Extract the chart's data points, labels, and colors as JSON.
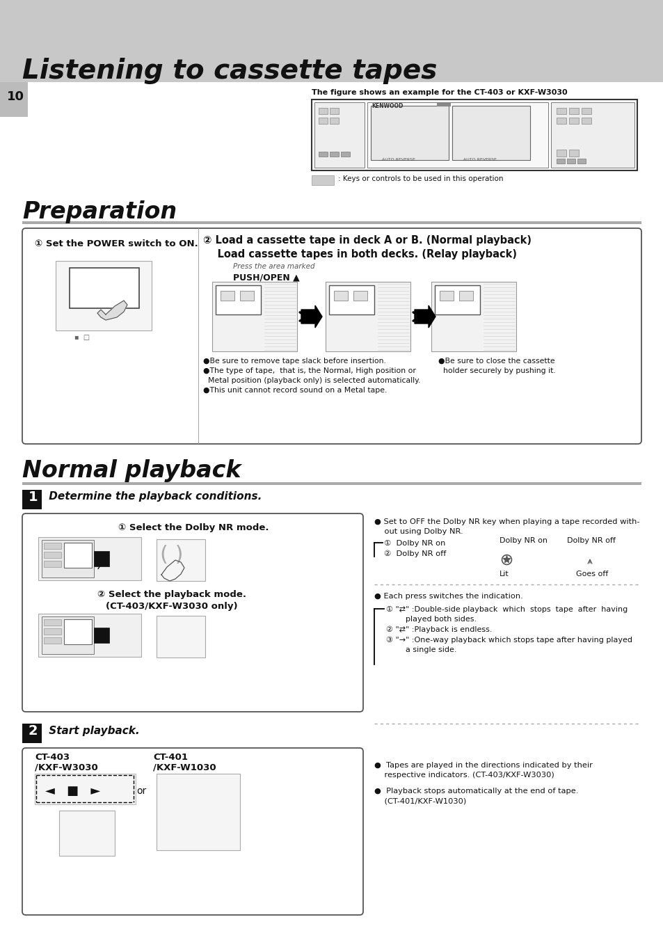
{
  "title": "Listening to cassette tapes",
  "page_number": "10",
  "section1_title": "Preparation",
  "section2_title": "Normal playback",
  "step1_title": " Determine the playback conditions.",
  "step2_title": " Start playback.",
  "bg_color": "#ffffff",
  "header_bg": "#c8c8c8",
  "section_divider": "#aaaaaa",
  "box_border": "#666666",
  "dark_gray": "#888888",
  "light_gray": "#cccccc",
  "black": "#000000",
  "step_box_bg": "#222222",
  "figure_caption": "The figure shows an example for the CT-403 or KXF-W3030",
  "legend_text": ": Keys or controls to be used in this operation",
  "power_text": "① Set the POWER switch to ON.",
  "load_text1": "② Load a cassette tape in deck A or B. (Normal playback)",
  "load_text2": "    Load cassette tapes in both decks. (Relay playback)",
  "push_open_italic": "Press the area marked",
  "push_open_bold": "PUSH/OPEN ▲",
  "bullet1": "●Be sure to remove tape slack before insertion.",
  "bullet2": "●The type of tape,  that is, the Normal, High position or",
  "bullet2b": "  Metal position (playback only) is selected automatically.",
  "bullet3": "●This unit cannot record sound on a Metal tape.",
  "bullet4": "●Be sure to close the cassette",
  "bullet4b": "  holder securely by pushing it.",
  "nr1_title": "① Select the Dolby NR mode.",
  "nr2_title": "② Select the playback mode.",
  "nr2_sub": "(CT-403/KXF-W3030 only)",
  "dolby_bullet": "● Set to OFF the Dolby NR key when playing a tape recorded with-",
  "dolby_bullet2": "    out using Dolby NR.",
  "dolby_list1": "①  Dolby NR on",
  "dolby_list2": "②  Dolby NR off",
  "dolby_col1": "Dolby NR on",
  "dolby_col2": "Dolby NR off",
  "dolby_lit": "Lit",
  "dolby_goesoff": "Goes off",
  "press_bullet": "● Each press switches the indication.",
  "press1a": "① \"⇄\" :Double-side playback  which  stops  tape  after  having",
  "press1b": "        played both sides.",
  "press2": "② \"⇄\" :Playback is endless.",
  "press3a": "③ \"→\" :One-way playback which stops tape after having played",
  "press3b": "        a single side.",
  "ct403_label": "CT-403\n/KXF-W3030",
  "ct401_label": "CT-401\n/KXF-W1030",
  "or_text": "or",
  "play_note1": "●  Tapes are played in the directions indicated by their",
  "play_note1b": "    respective indicators. (CT-403/KXF-W3030)",
  "play_note2": "●  Playback stops automatically at the end of tape.",
  "play_note2b": "    (CT-401/KXF-W1030)"
}
